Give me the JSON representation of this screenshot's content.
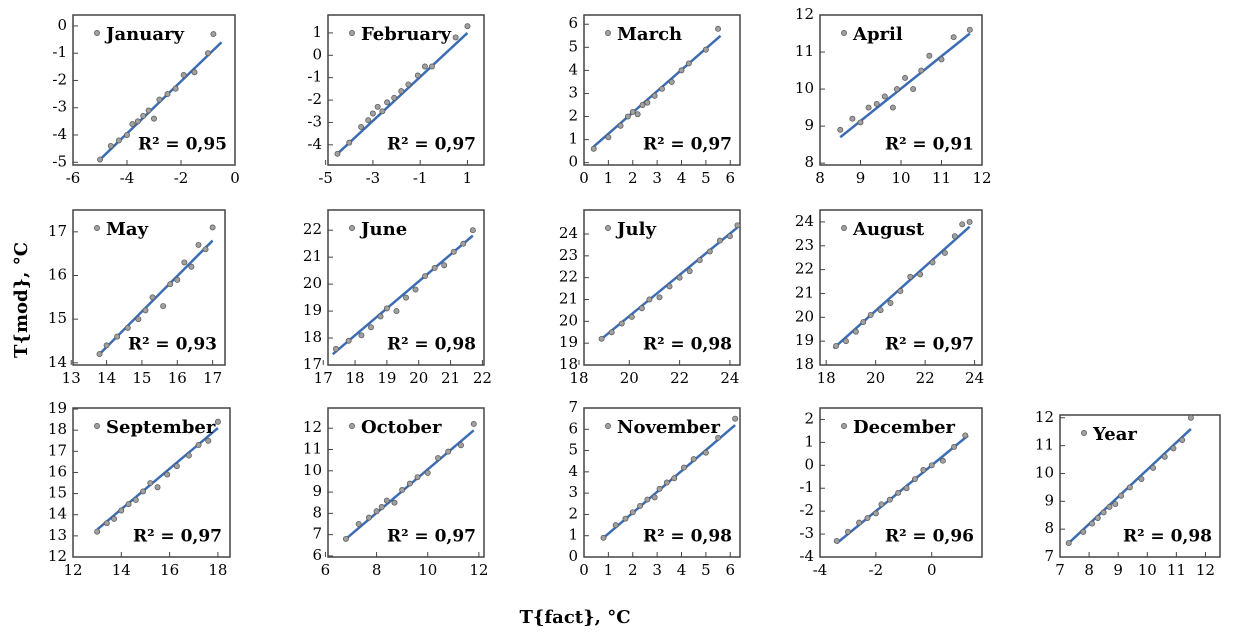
{
  "ylabel": "T{mod}, °C",
  "xlabel": "T{fact}, °C",
  "chart_data": [
    {
      "type": "scatter",
      "series": [
        {
          "name": "January",
          "color": "#a0a0a0",
          "x": [
            -5,
            -4.6,
            -4.3,
            -4,
            -3.8,
            -3.6,
            -3.4,
            -3.2,
            -3,
            -2.8,
            -2.5,
            -2.2,
            -1.9,
            -1.5,
            -1,
            -0.8
          ],
          "y": [
            -4.9,
            -4.4,
            -4.2,
            -4,
            -3.6,
            -3.5,
            -3.3,
            -3.1,
            -3.4,
            -2.7,
            -2.5,
            -2.3,
            -1.8,
            -1.7,
            -1,
            -0.3
          ]
        }
      ],
      "fit": {
        "color": "#3c6cb4",
        "x": [
          -5,
          -0.5
        ],
        "y": [
          -4.9,
          -0.6
        ]
      },
      "annotation": "R² = 0,95",
      "xlim": [
        -6,
        0
      ],
      "ylim": [
        -5.1,
        0.4
      ],
      "xticks": [
        -6,
        -4,
        -2,
        0
      ],
      "yticks": [
        -5,
        -4,
        -3,
        -2,
        -1,
        0
      ]
    },
    {
      "type": "scatter",
      "series": [
        {
          "name": "February",
          "color": "#a0a0a0",
          "x": [
            -4.5,
            -4,
            -3.5,
            -3.2,
            -3,
            -2.8,
            -2.6,
            -2.4,
            -2.1,
            -1.8,
            -1.5,
            -1.1,
            -0.8,
            -0.5,
            0.5,
            1
          ],
          "y": [
            -4.4,
            -3.9,
            -3.2,
            -2.9,
            -2.6,
            -2.3,
            -2.5,
            -2.1,
            -1.9,
            -1.6,
            -1.3,
            -0.9,
            -0.5,
            -0.5,
            0.8,
            1.3
          ]
        }
      ],
      "fit": {
        "color": "#3c6cb4",
        "x": [
          -4.5,
          1
        ],
        "y": [
          -4.4,
          1
        ]
      },
      "annotation": "R² = 0,97",
      "xlim": [
        -4.9,
        1.7
      ],
      "ylim": [
        -4.9,
        1.8
      ],
      "xticks": [
        -5,
        -3,
        -1,
        1
      ],
      "yticks": [
        -4,
        -3,
        -2,
        -1,
        0,
        1
      ]
    },
    {
      "type": "scatter",
      "series": [
        {
          "name": "March",
          "color": "#a0a0a0",
          "x": [
            0.4,
            1,
            1.5,
            1.8,
            2,
            2.2,
            2.4,
            2.6,
            2.9,
            3.2,
            3.6,
            4,
            4.3,
            5,
            5.5
          ],
          "y": [
            0.6,
            1.1,
            1.6,
            2,
            2.2,
            2.1,
            2.5,
            2.6,
            2.9,
            3.2,
            3.5,
            4,
            4.3,
            4.9,
            5.8
          ]
        }
      ],
      "fit": {
        "color": "#3c6cb4",
        "x": [
          0.4,
          5.6
        ],
        "y": [
          0.7,
          5.5
        ]
      },
      "annotation": "R² = 0,97",
      "xlim": [
        0,
        6.4
      ],
      "ylim": [
        -0.1,
        6.4
      ],
      "xticks": [
        0,
        1,
        2,
        3,
        4,
        5,
        6
      ],
      "yticks": [
        0,
        1,
        2,
        3,
        4,
        5,
        6
      ]
    },
    {
      "type": "scatter",
      "series": [
        {
          "name": "April",
          "color": "#a0a0a0",
          "x": [
            8.5,
            8.8,
            9,
            9.2,
            9.4,
            9.6,
            9.8,
            9.9,
            10.1,
            10.3,
            10.5,
            10.7,
            11,
            11.3,
            11.7
          ],
          "y": [
            8.9,
            9.2,
            9.1,
            9.5,
            9.6,
            9.8,
            9.5,
            10,
            10.3,
            10,
            10.5,
            10.9,
            10.8,
            11.4,
            11.6
          ]
        }
      ],
      "fit": {
        "color": "#3c6cb4",
        "x": [
          8.5,
          11.7
        ],
        "y": [
          8.7,
          11.5
        ]
      },
      "annotation": "R² = 0,91",
      "xlim": [
        8,
        12
      ],
      "ylim": [
        7.95,
        12
      ],
      "xticks": [
        8,
        9,
        10,
        11,
        12
      ],
      "yticks": [
        8,
        9,
        10,
        11,
        12
      ]
    },
    {
      "type": "scatter",
      "series": [
        {
          "name": "May",
          "color": "#a0a0a0",
          "x": [
            13.8,
            14,
            14.3,
            14.6,
            14.9,
            15.1,
            15.3,
            15.6,
            15.8,
            16,
            16.2,
            16.4,
            16.6,
            16.8,
            17
          ],
          "y": [
            14.2,
            14.4,
            14.6,
            14.8,
            15,
            15.2,
            15.5,
            15.3,
            15.8,
            15.9,
            16.3,
            16.2,
            16.7,
            16.6,
            17.1
          ]
        }
      ],
      "fit": {
        "color": "#3c6cb4",
        "x": [
          13.8,
          17
        ],
        "y": [
          14.2,
          16.8
        ]
      },
      "annotation": "R² = 0,93",
      "xlim": [
        13.05,
        17.35
      ],
      "ylim": [
        13.95,
        17.5
      ],
      "xticks": [
        13,
        14,
        15,
        16,
        17
      ],
      "yticks": [
        14,
        15,
        16,
        17
      ]
    },
    {
      "type": "scatter",
      "series": [
        {
          "name": "June",
          "color": "#a0a0a0",
          "x": [
            17.4,
            17.8,
            18.2,
            18.5,
            18.8,
            19,
            19.3,
            19.6,
            19.9,
            20.2,
            20.5,
            20.8,
            21.1,
            21.4,
            21.7
          ],
          "y": [
            17.6,
            17.9,
            18.1,
            18.4,
            18.8,
            19.1,
            19,
            19.5,
            19.8,
            20.3,
            20.6,
            20.7,
            21.2,
            21.5,
            22
          ]
        }
      ],
      "fit": {
        "color": "#3c6cb4",
        "x": [
          17.3,
          21.7
        ],
        "y": [
          17.4,
          21.8
        ]
      },
      "annotation": "R² = 0,98",
      "xlim": [
        17.15,
        22.05
      ],
      "ylim": [
        17,
        22.75
      ],
      "xticks": [
        17,
        18,
        19,
        20,
        21,
        22
      ],
      "yticks": [
        17,
        18,
        19,
        20,
        21,
        22
      ]
    },
    {
      "type": "scatter",
      "series": [
        {
          "name": "July",
          "color": "#a0a0a0",
          "x": [
            18.9,
            19.3,
            19.7,
            20.1,
            20.5,
            20.8,
            21.2,
            21.6,
            22,
            22.4,
            22.8,
            23.2,
            23.6,
            24,
            24.3
          ],
          "y": [
            19.2,
            19.5,
            19.9,
            20.2,
            20.6,
            21,
            21.1,
            21.6,
            22,
            22.3,
            22.8,
            23.2,
            23.7,
            23.9,
            24.4
          ]
        }
      ],
      "fit": {
        "color": "#3c6cb4",
        "x": [
          18.9,
          24.3
        ],
        "y": [
          19.2,
          24.3
        ]
      },
      "annotation": "R² = 0,98",
      "xlim": [
        18.2,
        24.4
      ],
      "ylim": [
        18,
        25.1
      ],
      "xticks": [
        18,
        20,
        22,
        24
      ],
      "yticks": [
        18,
        19,
        20,
        21,
        22,
        23,
        24
      ]
    },
    {
      "type": "scatter",
      "series": [
        {
          "name": "August",
          "color": "#a0a0a0",
          "x": [
            18.4,
            18.8,
            19.2,
            19.5,
            19.8,
            20.2,
            20.6,
            21,
            21.4,
            21.8,
            22.3,
            22.8,
            23.2,
            23.5,
            23.8
          ],
          "y": [
            18.8,
            19,
            19.4,
            19.8,
            20.1,
            20.3,
            20.6,
            21.1,
            21.7,
            21.8,
            22.3,
            22.7,
            23.4,
            23.9,
            24
          ]
        }
      ],
      "fit": {
        "color": "#3c6cb4",
        "x": [
          18.3,
          23.8
        ],
        "y": [
          18.7,
          23.8
        ]
      },
      "annotation": "R² = 0,97",
      "xlim": [
        17.75,
        24.3
      ],
      "ylim": [
        18,
        24.5
      ],
      "xticks": [
        18,
        20,
        22,
        24
      ],
      "yticks": [
        18,
        19,
        20,
        21,
        22,
        23,
        24
      ]
    },
    {
      "type": "scatter",
      "series": [
        {
          "name": "September",
          "color": "#a0a0a0",
          "x": [
            13,
            13.4,
            13.7,
            14,
            14.3,
            14.6,
            14.9,
            15.2,
            15.5,
            15.9,
            16.3,
            16.8,
            17.2,
            17.6,
            18
          ],
          "y": [
            13.2,
            13.6,
            13.8,
            14.2,
            14.5,
            14.7,
            15.1,
            15.5,
            15.3,
            15.9,
            16.3,
            16.8,
            17.3,
            17.5,
            18.4
          ]
        }
      ],
      "fit": {
        "color": "#3c6cb4",
        "x": [
          13,
          18
        ],
        "y": [
          13.3,
          18.1
        ]
      },
      "annotation": "R² = 0,97",
      "xlim": [
        12,
        18.5
      ],
      "ylim": [
        12,
        19.05
      ],
      "xticks": [
        12,
        14,
        16,
        18
      ],
      "yticks": [
        12,
        13,
        14,
        15,
        16,
        17,
        18,
        19
      ]
    },
    {
      "type": "scatter",
      "series": [
        {
          "name": "October",
          "color": "#a0a0a0",
          "x": [
            6.8,
            7.3,
            7.7,
            8,
            8.2,
            8.4,
            8.7,
            9,
            9.3,
            9.6,
            10,
            10.4,
            10.8,
            11.3,
            11.8
          ],
          "y": [
            6.8,
            7.5,
            7.8,
            8.1,
            8.3,
            8.6,
            8.5,
            9.1,
            9.4,
            9.7,
            9.9,
            10.6,
            10.9,
            11.2,
            12.2
          ]
        }
      ],
      "fit": {
        "color": "#3c6cb4",
        "x": [
          6.8,
          11.8
        ],
        "y": [
          6.8,
          11.9
        ]
      },
      "annotation": "R² = 0,97",
      "xlim": [
        6.1,
        12.2
      ],
      "ylim": [
        5.95,
        12.95
      ],
      "xticks": [
        6,
        8,
        10,
        12
      ],
      "yticks": [
        6,
        7,
        8,
        9,
        10,
        11,
        12
      ]
    },
    {
      "type": "scatter",
      "series": [
        {
          "name": "November",
          "color": "#a0a0a0",
          "x": [
            0.8,
            1.3,
            1.7,
            2,
            2.3,
            2.6,
            2.9,
            3.1,
            3.4,
            3.7,
            4.1,
            4.5,
            5,
            5.5,
            6.2
          ],
          "y": [
            0.9,
            1.5,
            1.8,
            2.1,
            2.4,
            2.7,
            2.8,
            3.2,
            3.5,
            3.7,
            4.2,
            4.6,
            4.9,
            5.6,
            6.5
          ]
        }
      ],
      "fit": {
        "color": "#3c6cb4",
        "x": [
          0.8,
          6.2
        ],
        "y": [
          0.9,
          6.2
        ]
      },
      "annotation": "R² = 0,98",
      "xlim": [
        0,
        6.4
      ],
      "ylim": [
        0,
        7
      ],
      "xticks": [
        0,
        1,
        2,
        3,
        4,
        5,
        6
      ],
      "yticks": [
        0,
        1,
        2,
        3,
        4,
        5,
        6,
        7
      ]
    },
    {
      "type": "scatter",
      "series": [
        {
          "name": "December",
          "color": "#a0a0a0",
          "x": [
            -3.4,
            -3,
            -2.6,
            -2.3,
            -2,
            -1.8,
            -1.5,
            -1.2,
            -0.9,
            -0.6,
            -0.3,
            0,
            0.4,
            0.8,
            1.2
          ],
          "y": [
            -3.3,
            -2.9,
            -2.5,
            -2.3,
            -2.1,
            -1.7,
            -1.5,
            -1.2,
            -1,
            -0.6,
            -0.2,
            0,
            0.2,
            0.8,
            1.3
          ]
        }
      ],
      "fit": {
        "color": "#3c6cb4",
        "x": [
          -3.4,
          1.3
        ],
        "y": [
          -3.4,
          1.3
        ]
      },
      "annotation": "R² = 0,96",
      "xlim": [
        -4,
        1.8
      ],
      "ylim": [
        -4,
        2.5
      ],
      "xticks": [
        -4,
        -2,
        0
      ],
      "yticks": [
        -4,
        -3,
        -2,
        -1,
        0,
        1,
        2
      ]
    },
    {
      "type": "scatter",
      "series": [
        {
          "name": "Year",
          "color": "#a0a0a0",
          "x": [
            7.3,
            7.8,
            8.1,
            8.3,
            8.5,
            8.7,
            8.9,
            9.1,
            9.4,
            9.8,
            10.2,
            10.6,
            10.9,
            11.2,
            11.5
          ],
          "y": [
            7.5,
            7.9,
            8.2,
            8.4,
            8.6,
            8.8,
            8.9,
            9.2,
            9.5,
            9.8,
            10.2,
            10.6,
            10.9,
            11.2,
            12
          ]
        }
      ],
      "fit": {
        "color": "#3c6cb4",
        "x": [
          7.3,
          11.5
        ],
        "y": [
          7.5,
          11.6
        ]
      },
      "annotation": "R² = 0,98",
      "xlim": [
        7,
        12.5
      ],
      "ylim": [
        7,
        12.1
      ],
      "xticks": [
        7,
        8,
        9,
        10,
        11,
        12
      ],
      "yticks": [
        7,
        8,
        9,
        10,
        11,
        12
      ]
    }
  ]
}
